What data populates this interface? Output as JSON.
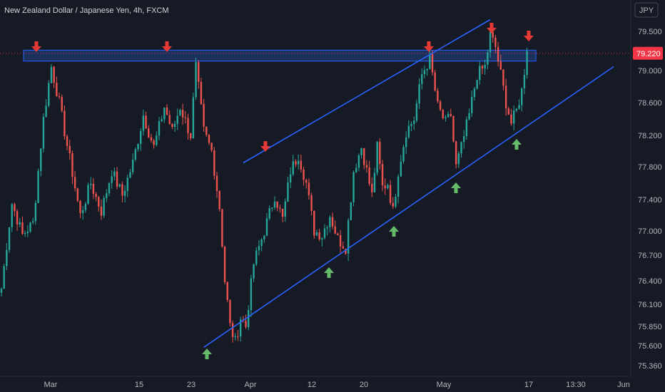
{
  "chart_data": {
    "type": "candlestick",
    "title": "New Zealand Dollar / Japanese Yen, 4h, FXCM",
    "currency_label": "JPY",
    "price_tag": "79.220",
    "x_ticks": [
      "Mar",
      "15",
      "23",
      "Apr",
      "12",
      "20",
      "May",
      "17",
      "13:30",
      "Jun"
    ],
    "y_ticks": [
      75.36,
      75.6,
      75.85,
      76.1,
      76.4,
      76.7,
      77.0,
      77.4,
      77.8,
      78.2,
      78.6,
      79.0,
      79.5
    ],
    "y_tick_labels": [
      "75.360",
      "75.600",
      "75.850",
      "76.100",
      "76.400",
      "76.700",
      "77.000",
      "77.400",
      "77.800",
      "78.200",
      "78.600",
      "79.000",
      "79.500"
    ],
    "grid": false,
    "colors": {
      "background": "#161a25",
      "up_candle": "#26a69a",
      "down_candle": "#ef5350",
      "trendline": "#2962ff",
      "resistance_zone": "#1e3a6e",
      "down_arrow": "#e53935",
      "up_arrow": "#66bb6a",
      "price_tag": "#f23645",
      "axis_text": "#b2b5be"
    },
    "resistance_zone": {
      "from": 79.12,
      "to": 79.26
    },
    "last_price_line": 79.22,
    "channel_lines": [
      {
        "name": "upper",
        "start": {
          "time": "Mar 31",
          "price": 77.85
        },
        "end": {
          "time": "May 10",
          "price": 79.65
        }
      },
      {
        "name": "lower",
        "start": {
          "time": "Mar 24",
          "price": 75.58
        },
        "end": {
          "time": "May 25",
          "price": 79.05
        }
      }
    ],
    "markers": {
      "down_arrows": [
        "Feb 26",
        "Mar 17",
        "Apr 3",
        "Apr 28",
        "May 10",
        "May 17"
      ],
      "up_arrows": [
        "Mar 24",
        "Apr 11",
        "Apr 20",
        "May 1",
        "May 15"
      ]
    },
    "ohlc_path": [
      [
        0,
        76.3
      ],
      [
        4,
        77.35
      ],
      [
        8,
        76.95
      ],
      [
        12,
        77.1
      ],
      [
        16,
        78.4
      ],
      [
        19,
        79.05
      ],
      [
        22,
        78.6
      ],
      [
        26,
        77.9
      ],
      [
        30,
        77.2
      ],
      [
        34,
        77.6
      ],
      [
        38,
        77.25
      ],
      [
        42,
        77.75
      ],
      [
        46,
        77.45
      ],
      [
        50,
        77.85
      ],
      [
        54,
        78.45
      ],
      [
        58,
        78.05
      ],
      [
        62,
        78.55
      ],
      [
        65,
        78.25
      ],
      [
        68,
        78.55
      ],
      [
        72,
        78.2
      ],
      [
        74,
        79.05
      ],
      [
        77,
        78.25
      ],
      [
        80,
        78.0
      ],
      [
        83,
        77.3
      ],
      [
        85,
        76.4
      ],
      [
        87,
        75.85
      ],
      [
        89,
        75.65
      ],
      [
        91,
        75.95
      ],
      [
        93,
        75.85
      ],
      [
        96,
        76.6
      ],
      [
        100,
        77.0
      ],
      [
        104,
        77.45
      ],
      [
        107,
        77.15
      ],
      [
        110,
        77.75
      ],
      [
        113,
        77.95
      ],
      [
        116,
        77.6
      ],
      [
        119,
        77.0
      ],
      [
        122,
        76.95
      ],
      [
        125,
        77.2
      ],
      [
        128,
        76.9
      ],
      [
        131,
        76.8
      ],
      [
        134,
        77.75
      ],
      [
        137,
        78.05
      ],
      [
        139,
        77.75
      ],
      [
        141,
        77.45
      ],
      [
        143,
        78.05
      ],
      [
        145,
        77.55
      ],
      [
        147,
        77.6
      ],
      [
        149,
        77.25
      ],
      [
        151,
        77.75
      ],
      [
        154,
        78.25
      ],
      [
        157,
        78.4
      ],
      [
        160,
        78.95
      ],
      [
        163,
        79.15
      ],
      [
        166,
        78.55
      ],
      [
        169,
        78.35
      ],
      [
        171,
        78.45
      ],
      [
        173,
        77.8
      ],
      [
        175,
        78.05
      ],
      [
        178,
        78.45
      ],
      [
        181,
        78.95
      ],
      [
        184,
        79.05
      ],
      [
        186,
        79.45
      ],
      [
        188,
        79.3
      ],
      [
        190,
        78.95
      ],
      [
        192,
        78.6
      ],
      [
        194,
        78.35
      ],
      [
        196,
        78.5
      ],
      [
        198,
        78.75
      ],
      [
        200,
        79.25
      ]
    ]
  }
}
